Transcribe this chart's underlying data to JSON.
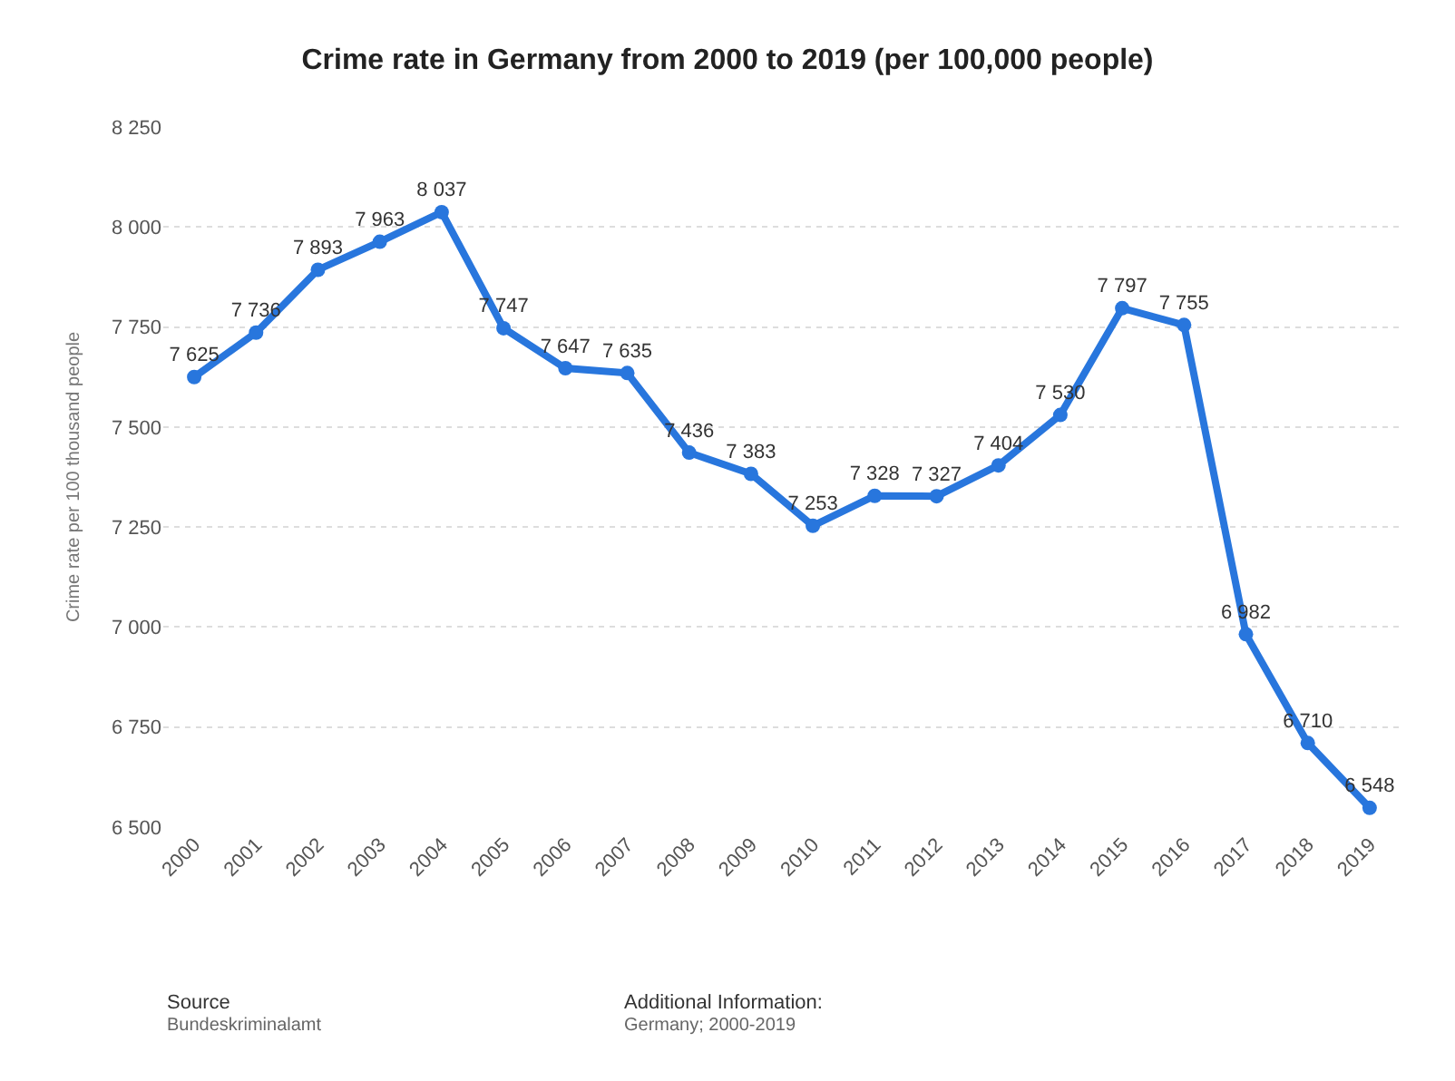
{
  "chart_data": {
    "type": "line",
    "title": "Crime rate in Germany from 2000 to 2019 (per 100,000 people)",
    "ylabel": "Crime rate per 100 thousand people",
    "categories": [
      "2000",
      "2001",
      "2002",
      "2003",
      "2004",
      "2005",
      "2006",
      "2007",
      "2008",
      "2009",
      "2010",
      "2011",
      "2012",
      "2013",
      "2014",
      "2015",
      "2016",
      "2017",
      "2018",
      "2019"
    ],
    "series": [
      {
        "color": "#2876dd",
        "values": [
          7625,
          7736,
          7893,
          7963,
          8037,
          7747,
          7647,
          7635,
          7436,
          7383,
          7253,
          7328,
          7327,
          7404,
          7530,
          7797,
          7755,
          6982,
          6710,
          6548
        ]
      }
    ],
    "ylim": [
      6500,
      8250
    ],
    "yticks": [
      {
        "value": 6500,
        "label": "6 500"
      },
      {
        "value": 6750,
        "label": "6 750"
      },
      {
        "value": 7000,
        "label": "7 000"
      },
      {
        "value": 7250,
        "label": "7 250"
      },
      {
        "value": 7500,
        "label": "7 500"
      },
      {
        "value": 7750,
        "label": "7 750"
      },
      {
        "value": 8000,
        "label": "8 000"
      },
      {
        "value": 8250,
        "label": "8 250"
      }
    ],
    "data_labels": true,
    "grid": "y",
    "marker": "circle",
    "line_style": "solid",
    "legend": false,
    "annotations": [
      "Source",
      "Bundeskriminalamt",
      "Additional Information:",
      "Germany; 2000-2019"
    ]
  }
}
